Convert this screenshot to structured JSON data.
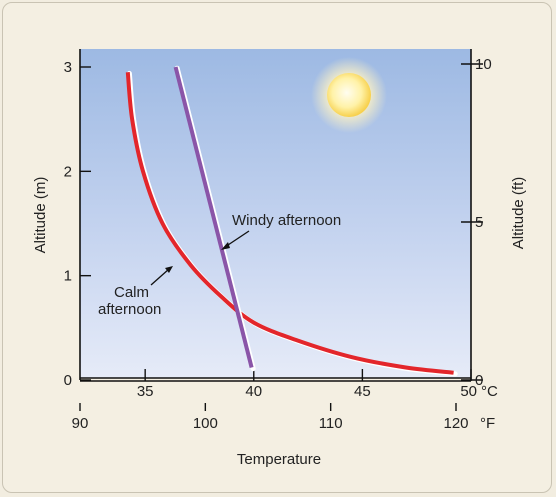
{
  "chart_data": {
    "type": "line",
    "xlabel": "Temperature",
    "x_units_c": "°C",
    "x_units_f": "°F",
    "x_ticks_c": [
      "35",
      "40",
      "45",
      "50"
    ],
    "x_ticks_f": [
      "90",
      "100",
      "110",
      "120"
    ],
    "xlim_c": [
      32,
      50
    ],
    "y_left_label": "Altitude (m)",
    "y_left_ticks": [
      "0",
      "1",
      "2",
      "3"
    ],
    "ylim_m": [
      0,
      3
    ],
    "y_right_label": "Altitude (ft)",
    "y_right_ticks": [
      "0",
      "5",
      "10"
    ],
    "ylim_ft": [
      0,
      10
    ],
    "series": [
      {
        "name": "Calm afternoon",
        "color": "#e3262b",
        "x": [
          34.2,
          34.4,
          34.9,
          35.8,
          37.1,
          38.5,
          40.0,
          42.0,
          44.5,
          47.0,
          49.2
        ],
        "y": [
          2.95,
          2.5,
          2.0,
          1.5,
          1.1,
          0.8,
          0.55,
          0.38,
          0.22,
          0.12,
          0.07
        ]
      },
      {
        "name": "Windy afternoon",
        "color": "#8a55a8",
        "x": [
          36.4,
          39.9
        ],
        "y": [
          3.0,
          0.12
        ]
      }
    ],
    "annotations": [
      {
        "text": "Windy afternoon",
        "target": "Windy afternoon"
      },
      {
        "text": "Calm",
        "text2": "afternoon",
        "target": "Calm afternoon"
      }
    ]
  }
}
